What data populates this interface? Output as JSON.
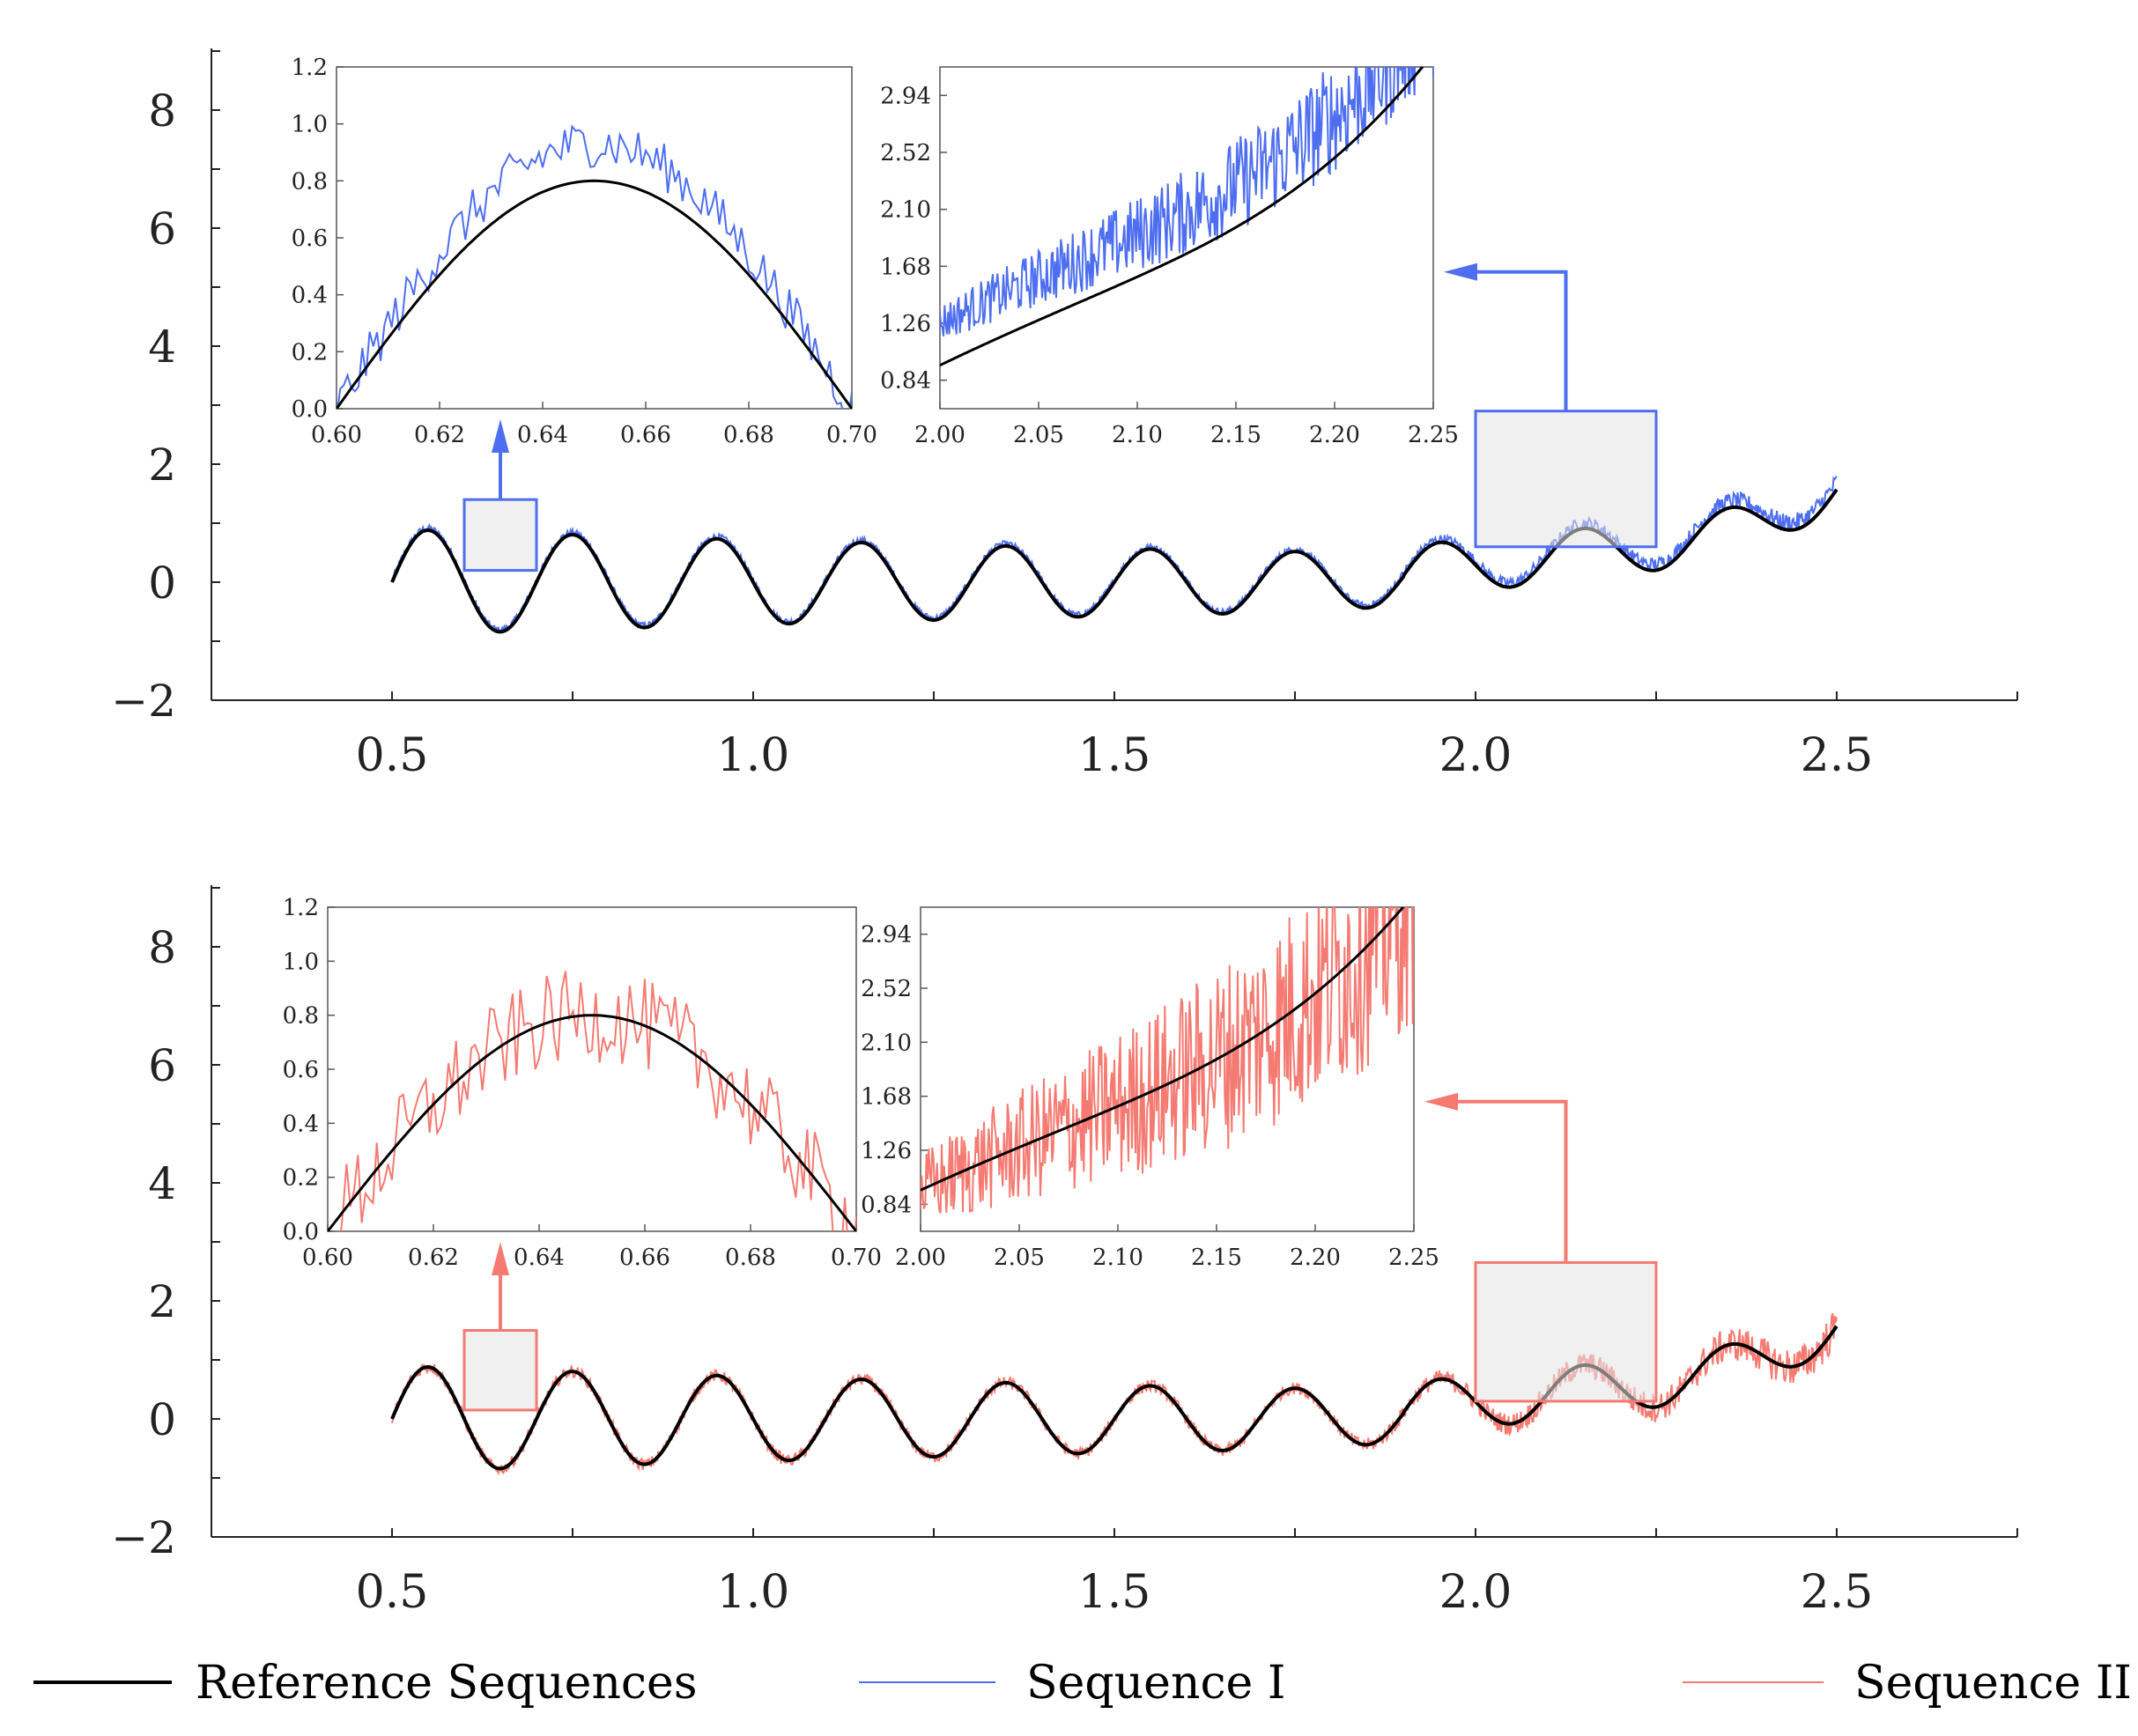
{
  "colors": {
    "reference": "#000000",
    "sequence1": "#4d6ef0",
    "sequence2": "#f47a72",
    "zoom_fill": "#e3e3e3"
  },
  "legend": {
    "entries": [
      "Reference Sequences",
      "Sequence I",
      "Sequence II"
    ]
  },
  "chart_data": [
    {
      "type": "line",
      "title": "",
      "xlabel": "",
      "ylabel": "",
      "xlim": [
        0.25,
        2.75
      ],
      "ylim": [
        -2,
        9
      ],
      "x_ticks": [
        "0.5",
        "1.0",
        "1.5",
        "2.0",
        "2.5"
      ],
      "y_ticks": [
        "8",
        "6",
        "4",
        "2",
        "0",
        "−2"
      ],
      "x_range": [
        0.5,
        2.5
      ],
      "series": [
        {
          "name": "Reference Sequences",
          "role": "reference",
          "noise_amplitude": 0
        },
        {
          "name": "Sequence I",
          "role": "sequence1",
          "noise_amplitude": 0.12
        }
      ],
      "zoom_regions": [
        {
          "x_range": [
            0.6,
            0.7
          ],
          "y_range": [
            0.2,
            1.4
          ]
        },
        {
          "x_range": [
            2.0,
            2.25
          ],
          "y_range": [
            0.6,
            2.9
          ]
        }
      ],
      "insets": [
        {
          "x_range": [
            0.6,
            0.7
          ],
          "y_range": [
            0.0,
            1.2
          ],
          "x_ticks": [
            "0.60",
            "0.62",
            "0.64",
            "0.66",
            "0.68",
            "0.70"
          ],
          "y_ticks": [
            "1.2",
            "1.0",
            "0.8",
            "0.6",
            "0.4",
            "0.2",
            "0.0"
          ]
        },
        {
          "x_range": [
            2.0,
            2.25
          ],
          "y_range": [
            0.63,
            3.15
          ],
          "x_ticks": [
            "2.00",
            "2.05",
            "2.10",
            "2.15",
            "2.20",
            "2.25"
          ],
          "y_ticks": [
            "2.94",
            "2.52",
            "2.10",
            "1.68",
            "1.26",
            "0.84"
          ]
        }
      ]
    },
    {
      "type": "line",
      "title": "",
      "xlabel": "",
      "ylabel": "",
      "xlim": [
        0.25,
        2.75
      ],
      "ylim": [
        -2,
        9
      ],
      "x_ticks": [
        "0.5",
        "1.0",
        "1.5",
        "2.0",
        "2.5"
      ],
      "y_ticks": [
        "8",
        "6",
        "4",
        "2",
        "0",
        "−2"
      ],
      "x_range": [
        0.5,
        2.5
      ],
      "series": [
        {
          "name": "Reference Sequences",
          "role": "reference",
          "noise_amplitude": 0
        },
        {
          "name": "Sequence II",
          "role": "sequence2",
          "noise_amplitude": 0.25
        }
      ],
      "zoom_regions": [
        {
          "x_range": [
            0.6,
            0.7
          ],
          "y_range": [
            0.15,
            1.5
          ]
        },
        {
          "x_range": [
            2.0,
            2.25
          ],
          "y_range": [
            0.3,
            2.65
          ]
        }
      ],
      "insets": [
        {
          "x_range": [
            0.6,
            0.7
          ],
          "y_range": [
            0.0,
            1.2
          ],
          "x_ticks": [
            "0.60",
            "0.62",
            "0.64",
            "0.66",
            "0.68",
            "0.70"
          ],
          "y_ticks": [
            "1.2",
            "1.0",
            "0.8",
            "0.6",
            "0.4",
            "0.2",
            "0.0"
          ]
        },
        {
          "x_range": [
            2.0,
            2.25
          ],
          "y_range": [
            0.63,
            3.15
          ],
          "x_ticks": [
            "2.00",
            "2.05",
            "2.10",
            "2.15",
            "2.20",
            "2.25"
          ],
          "y_ticks": [
            "2.94",
            "2.52",
            "2.10",
            "1.68",
            "1.26",
            "0.84"
          ]
        }
      ]
    }
  ]
}
